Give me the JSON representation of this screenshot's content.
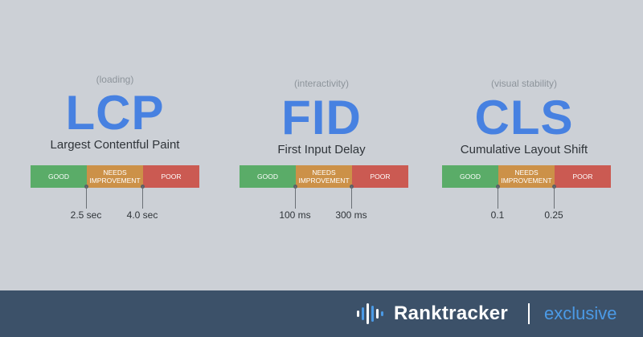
{
  "metrics": [
    {
      "category": "(loading)",
      "abbr": "LCP",
      "name": "Largest Contentful Paint",
      "segments": [
        "GOOD",
        "NEEDS\nIMPROVEMENT",
        "POOR"
      ],
      "thresholds": [
        "2.5 sec",
        "4.0 sec"
      ]
    },
    {
      "category": "(interactivity)",
      "abbr": "FID",
      "name": "First Input Delay",
      "segments": [
        "GOOD",
        "NEEDS\nIMPROVEMENT",
        "POOR"
      ],
      "thresholds": [
        "100 ms",
        "300 ms"
      ]
    },
    {
      "category": "(visual stability)",
      "abbr": "CLS",
      "name": "Cumulative Layout Shift",
      "segments": [
        "GOOD",
        "NEEDS\nIMPROVEMENT",
        "POOR"
      ],
      "thresholds": [
        "0.1",
        "0.25"
      ]
    }
  ],
  "footer": {
    "logo_icon": "soundwave-bars-icon",
    "brand": "Ranktracker",
    "tag": "exclusive"
  },
  "colors": {
    "background": "#ccd0d6",
    "accent": "#4781e1",
    "good": "#5aac68",
    "needs_improvement": "#cc9148",
    "poor": "#cb5a52",
    "footer": "#3c5169",
    "tag": "#4b9ae6"
  }
}
